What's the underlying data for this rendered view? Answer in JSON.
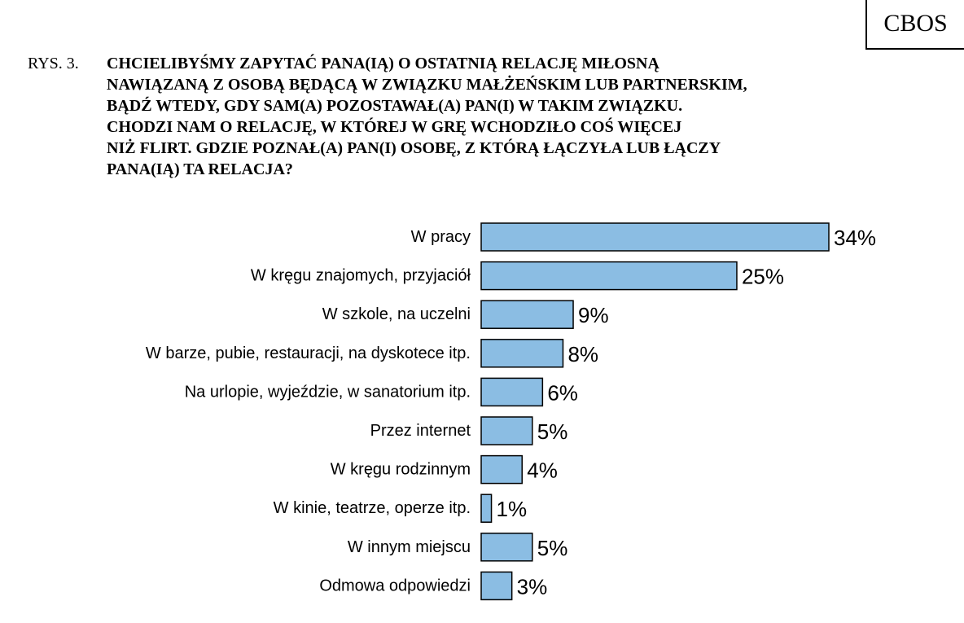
{
  "header": {
    "brand": "CBOS"
  },
  "figure": {
    "label": "RYS. 3.",
    "question_lines": [
      "CHCIELIBYŚMY ZAPYTAĆ PANA(IĄ) O OSTATNIĄ RELACJĘ MIŁOSNĄ",
      "NAWIĄZANĄ Z OSOBĄ BĘDĄCĄ W  ZWIĄZKU MAŁŻEŃSKIM LUB PARTNERSKIM,",
      "BĄDŹ  WTEDY, GDY SAM(A) POZOSTAWAŁ(A) PAN(I) W  TAKIM ZWIĄZKU.",
      "CHODZI NAM O  RELACJĘ, W KTÓREJ W GRĘ WCHODZIŁO COŚ WIĘCEJ",
      "NIŻ  FLIRT. GDZIE  POZNAŁ(A) PAN(I) OSOBĘ, Z KTÓRĄ ŁĄCZYŁA LUB ŁĄCZY",
      "PANA(IĄ) TA RELACJA?"
    ]
  },
  "chart_data": {
    "type": "bar",
    "orientation": "horizontal",
    "categories": [
      "W pracy",
      "W kręgu znajomych, przyjaciół",
      "W szkole, na uczelni",
      "W barze, pubie, restauracji, na dyskotece itp.",
      "Na urlopie, wyjeździe, w sanatorium itp.",
      "Przez internet",
      "W kręgu rodzinnym",
      "W kinie, teatrze, operze itp.",
      "W innym miejscu",
      "Odmowa odpowiedzi"
    ],
    "values": [
      34,
      25,
      9,
      8,
      6,
      5,
      4,
      1,
      5,
      3
    ],
    "value_labels": [
      "34%",
      "25%",
      "9%",
      "8%",
      "6%",
      "5%",
      "4%",
      "1%",
      "5%",
      "3%"
    ],
    "unit": "%",
    "xlim": [
      0,
      34
    ],
    "grid": false,
    "bar_color": "#8bbde3",
    "bar_outline_color": "#000000"
  }
}
